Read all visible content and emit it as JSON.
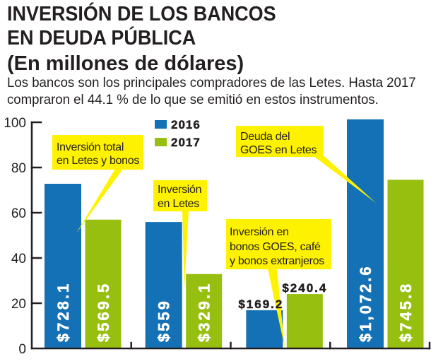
{
  "chart_data": {
    "type": "bar",
    "title": [
      "INVERSIÓN DE LOS BANCOS",
      "EN DEUDA PÚBLICA",
      "(En millones de dólares)"
    ],
    "subtitle": [
      "Los bancos son los principales compradores de las Letes. Hasta 2017",
      "compraron el 44.1 % de lo que se emitió en estos instrumentos."
    ],
    "xlabel": "",
    "ylabel": "",
    "categories": [
      "Inversión total en Letes y bonos",
      "Inversión en Letes",
      "Inversión en bonos GOES, café y bonos extranjeros",
      "Deuda del GOES en Letes"
    ],
    "series": [
      {
        "name": "2016",
        "color": "#1471b6",
        "values": [
          728.1,
          559,
          169.2,
          1072.6
        ],
        "labels": [
          "$728.1",
          "$559",
          "$169.2",
          "$1,072.6"
        ]
      },
      {
        "name": "2017",
        "color": "#97bf10",
        "values": [
          569.5,
          329.1,
          240.4,
          745.8
        ],
        "labels": [
          "$569.5",
          "$329.1",
          "$240.4",
          "$745.8"
        ]
      }
    ],
    "ylim": [
      0,
      100
    ],
    "yticks": [
      0,
      20,
      40,
      60,
      80,
      100
    ],
    "y_axis_value_divisor": 10,
    "grid": false,
    "legend": "top-center",
    "value_label_styles": [
      "inside-vertical",
      "inside-vertical",
      "above",
      "inside-vertical"
    ],
    "annotations": [
      {
        "category": 0,
        "lines": [
          "Inversión total",
          "en Letes y bonos"
        ]
      },
      {
        "category": 1,
        "lines": [
          "Inversión",
          "en Letes"
        ]
      },
      {
        "category": 2,
        "lines": [
          "Inversión en",
          "bonos GOES, café",
          "y bonos extranjeros"
        ]
      },
      {
        "category": 3,
        "lines": [
          "Deuda del",
          "GOES en Letes"
        ]
      }
    ],
    "annotation_color": "#fff200",
    "text_color": "#231f20"
  }
}
